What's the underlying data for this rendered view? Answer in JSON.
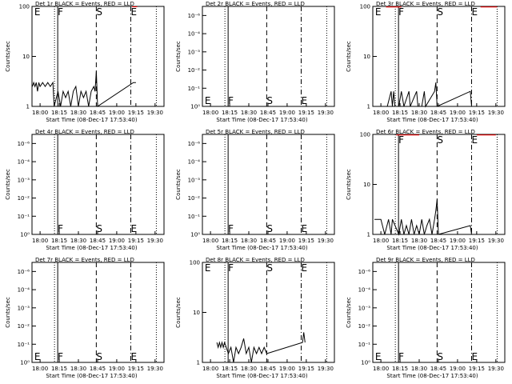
{
  "chart_data": [
    {
      "type": "line",
      "title": "Det 1r BLACK = Events, RED = LLD",
      "xlabel": "Start Time (08-Dec-17 17:53:40)",
      "ylabel": "Counts/sec",
      "log": true,
      "ylim": [
        1,
        100
      ],
      "yticks": [
        1,
        10,
        100
      ],
      "xlim": [
        1073.67,
        1177
      ],
      "xticks": [
        {
          "value": 1080,
          "label": "18:00"
        },
        {
          "value": 1095,
          "label": "18:15"
        },
        {
          "value": 1110,
          "label": "18:30"
        },
        {
          "value": 1125,
          "label": "18:45"
        },
        {
          "value": 1140,
          "label": "19:00"
        },
        {
          "value": 1155,
          "label": "19:15"
        },
        {
          "value": 1170,
          "label": "19:30"
        }
      ],
      "markers": [
        {
          "x": 1075.5,
          "label": "E",
          "style": "none"
        },
        {
          "x": 1091.3,
          "style": "dotted"
        },
        {
          "x": 1093.8,
          "label": "F",
          "style": "solid"
        },
        {
          "x": 1124,
          "label": "S",
          "style": "dashed"
        },
        {
          "x": 1151,
          "label": "E",
          "style": "dashdot"
        },
        {
          "x": 1171,
          "style": "dotted"
        }
      ],
      "marker_label_pos": "top",
      "series": [
        {
          "color": "#000000",
          "x": [
            1074,
            1075,
            1076,
            1077,
            1078,
            1079,
            1080,
            1082,
            1084,
            1086,
            1088,
            1090,
            1091,
            1094,
            1096,
            1098,
            1100,
            1102,
            1104,
            1106,
            1108,
            1110,
            1112,
            1114,
            1116,
            1118,
            1120,
            1122,
            1123,
            1124,
            1125,
            1153,
            1155
          ],
          "values": [
            2.5,
            3,
            2.5,
            3,
            2,
            3,
            2.5,
            3,
            2.5,
            3,
            2.5,
            3,
            1,
            2,
            1,
            2,
            1.5,
            2,
            1,
            2,
            2.5,
            1,
            2,
            1.5,
            2,
            1,
            2,
            2.5,
            2,
            5,
            1,
            3,
            3
          ]
        },
        {
          "color": "#ff0000",
          "x": [
            1152,
            1156
          ],
          "values": [
            98,
            98
          ]
        }
      ]
    },
    {
      "type": "line",
      "title": "Det 2r BLACK = Events, RED = LLD",
      "xlabel": "Start Time (08-Dec-17 17:53:40)",
      "ylabel": "Counts/sec",
      "log": false,
      "ylim": [
        1,
        1.0000055
      ],
      "yticks": [
        {
          "value": 1,
          "label": "10⁰"
        },
        {
          "value": 1.000001,
          "label": "10⁻¹"
        },
        {
          "value": 1.000002,
          "label": "10⁻²"
        },
        {
          "value": 1.000003,
          "label": "10⁻³"
        },
        {
          "value": 1.000004,
          "label": "10⁻⁴"
        },
        {
          "value": 1.000005,
          "label": "10⁻⁶"
        }
      ],
      "xlim": [
        1073.67,
        1177
      ],
      "xticks": [
        {
          "value": 1080,
          "label": "18:00"
        },
        {
          "value": 1095,
          "label": "18:15"
        },
        {
          "value": 1110,
          "label": "18:30"
        },
        {
          "value": 1125,
          "label": "18:45"
        },
        {
          "value": 1140,
          "label": "19:00"
        },
        {
          "value": 1155,
          "label": "19:15"
        },
        {
          "value": 1170,
          "label": "19:30"
        }
      ],
      "markers": [
        {
          "x": 1075.5,
          "label": "E",
          "style": "none"
        },
        {
          "x": 1091.3,
          "style": "dotted"
        },
        {
          "x": 1093.8,
          "label": "F",
          "style": "solid"
        },
        {
          "x": 1124,
          "label": "S",
          "style": "dashed"
        },
        {
          "x": 1151,
          "label": "E",
          "style": "dashdot"
        },
        {
          "x": 1171,
          "style": "dotted"
        }
      ],
      "marker_label_pos": "bottom",
      "series": []
    },
    {
      "type": "line",
      "title": "Det 3r BLACK = Events, RED = LLD",
      "xlabel": "Start Time (08-Dec-17 17:53:40)",
      "ylabel": "Counts/sec",
      "log": true,
      "ylim": [
        1,
        100
      ],
      "yticks": [
        1,
        10,
        100
      ],
      "xlim": [
        1073.67,
        1177
      ],
      "xticks": [
        {
          "value": 1080,
          "label": "18:00"
        },
        {
          "value": 1095,
          "label": "18:15"
        },
        {
          "value": 1110,
          "label": "18:30"
        },
        {
          "value": 1125,
          "label": "18:45"
        },
        {
          "value": 1140,
          "label": "19:00"
        },
        {
          "value": 1155,
          "label": "19:15"
        },
        {
          "value": 1170,
          "label": "19:30"
        }
      ],
      "markers": [
        {
          "x": 1075.5,
          "label": "E",
          "style": "none"
        },
        {
          "x": 1091.3,
          "style": "dotted"
        },
        {
          "x": 1093.8,
          "label": "F",
          "style": "solid"
        },
        {
          "x": 1124,
          "label": "S",
          "style": "dashed"
        },
        {
          "x": 1151,
          "label": "E",
          "style": "dashdot"
        },
        {
          "x": 1171,
          "style": "dotted"
        }
      ],
      "marker_label_pos": "top",
      "series": [
        {
          "color": "#000000",
          "x": [
            1085,
            1088,
            1089,
            1090,
            1091,
            1094,
            1096,
            1098,
            1102,
            1103,
            1108,
            1109,
            1112,
            1114,
            1115,
            1122,
            1123,
            1124,
            1150,
            1151
          ],
          "values": [
            1,
            2,
            1,
            2,
            1,
            1,
            2,
            1,
            2,
            1,
            2,
            1,
            1,
            2,
            1,
            2,
            3,
            1,
            2,
            1
          ]
        },
        {
          "color": "#ff0000",
          "x": [
            1084,
            1096,
            null,
            1158,
            1171
          ],
          "values": [
            97,
            97,
            null,
            97,
            97
          ]
        }
      ]
    },
    {
      "type": "line",
      "title": "Det 4r BLACK = Events, RED = LLD",
      "xlabel": "Start Time (08-Dec-17 17:53:40)",
      "ylabel": "Counts/sec",
      "log": false,
      "ylim": [
        1,
        1.0000055
      ],
      "yticks": [
        {
          "value": 1,
          "label": "10⁰"
        },
        {
          "value": 1.000001,
          "label": "10⁻¹"
        },
        {
          "value": 1.000002,
          "label": "10⁻²"
        },
        {
          "value": 1.000003,
          "label": "10⁻³"
        },
        {
          "value": 1.000004,
          "label": "10⁻⁴"
        },
        {
          "value": 1.000005,
          "label": "10⁻⁶"
        }
      ],
      "xlim": [
        1073.67,
        1177
      ],
      "xticks": [
        {
          "value": 1080,
          "label": "18:00"
        },
        {
          "value": 1095,
          "label": "18:15"
        },
        {
          "value": 1110,
          "label": "18:30"
        },
        {
          "value": 1125,
          "label": "18:45"
        },
        {
          "value": 1140,
          "label": "19:00"
        },
        {
          "value": 1155,
          "label": "19:15"
        },
        {
          "value": 1170,
          "label": "19:30"
        }
      ],
      "markers": [
        {
          "x": 1091.3,
          "style": "dotted"
        },
        {
          "x": 1093.8,
          "label": "F",
          "style": "solid"
        },
        {
          "x": 1124,
          "label": "S",
          "style": "dashed"
        },
        {
          "x": 1151,
          "label": "E",
          "style": "dashdot"
        },
        {
          "x": 1171,
          "style": "dotted"
        }
      ],
      "marker_label_pos": "bottom",
      "series": []
    },
    {
      "type": "line",
      "title": "Det 5r BLACK = Events, RED = LLD",
      "xlabel": "Start Time (08-Dec-17 17:53:40)",
      "ylabel": "Counts/sec",
      "log": false,
      "ylim": [
        1,
        1.0000055
      ],
      "yticks": [
        {
          "value": 1,
          "label": "10⁰"
        },
        {
          "value": 1.000001,
          "label": "10⁻¹"
        },
        {
          "value": 1.000002,
          "label": "10⁻²"
        },
        {
          "value": 1.000003,
          "label": "10⁻³"
        },
        {
          "value": 1.000004,
          "label": "10⁻⁴"
        },
        {
          "value": 1.000005,
          "label": "10⁻⁶"
        }
      ],
      "xlim": [
        1073.67,
        1177
      ],
      "xticks": [
        {
          "value": 1080,
          "label": "18:00"
        },
        {
          "value": 1095,
          "label": "18:15"
        },
        {
          "value": 1110,
          "label": "18:30"
        },
        {
          "value": 1125,
          "label": "18:45"
        },
        {
          "value": 1140,
          "label": "19:00"
        },
        {
          "value": 1155,
          "label": "19:15"
        },
        {
          "value": 1170,
          "label": "19:30"
        }
      ],
      "markers": [
        {
          "x": 1091.3,
          "style": "dotted"
        },
        {
          "x": 1093.8,
          "label": "F",
          "style": "solid"
        },
        {
          "x": 1124,
          "label": "S",
          "style": "dashed"
        },
        {
          "x": 1151,
          "label": "E",
          "style": "dashdot"
        },
        {
          "x": 1171,
          "style": "dotted"
        }
      ],
      "marker_label_pos": "bottom",
      "series": []
    },
    {
      "type": "line",
      "title": "Det 6r BLACK = Events, RED = LLD",
      "xlabel": "Start Time (08-Dec-17 17:53:40)",
      "ylabel": "Counts/sec",
      "log": true,
      "ylim": [
        1,
        100
      ],
      "yticks": [
        1,
        10,
        100
      ],
      "xlim": [
        1073.67,
        1177
      ],
      "xticks": [
        {
          "value": 1080,
          "label": "18:00"
        },
        {
          "value": 1095,
          "label": "18:15"
        },
        {
          "value": 1110,
          "label": "18:30"
        },
        {
          "value": 1125,
          "label": "18:45"
        },
        {
          "value": 1140,
          "label": "19:00"
        },
        {
          "value": 1155,
          "label": "19:15"
        },
        {
          "value": 1170,
          "label": "19:30"
        }
      ],
      "markers": [
        {
          "x": 1091.3,
          "style": "dotted"
        },
        {
          "x": 1093.8,
          "label": "F",
          "style": "solid"
        },
        {
          "x": 1124,
          "label": "S",
          "style": "dashed"
        },
        {
          "x": 1151,
          "label": "E",
          "style": "dashdot"
        },
        {
          "x": 1171,
          "style": "dotted"
        }
      ],
      "marker_label_pos": "top",
      "series": [
        {
          "color": "#000000",
          "x": [
            1075,
            1080,
            1083,
            1086,
            1088,
            1089,
            1094,
            1096,
            1098,
            1100,
            1102,
            1104,
            1106,
            1108,
            1110,
            1112,
            1114,
            1116,
            1118,
            1120,
            1122,
            1123,
            1124,
            1125,
            1150,
            1151
          ],
          "values": [
            2,
            2,
            1,
            2,
            1,
            2,
            1,
            2,
            1,
            1.5,
            1,
            2,
            1,
            1.5,
            1,
            2,
            1,
            1.5,
            2,
            1,
            2,
            3,
            5,
            1,
            1.5,
            1
          ]
        },
        {
          "color": "#ff0000",
          "x": [
            1092,
            1110,
            null,
            1155,
            1170
          ],
          "values": [
            97,
            97,
            null,
            97,
            97
          ]
        }
      ]
    },
    {
      "type": "line",
      "title": "Det 7r BLACK = Events, RED = LLD",
      "xlabel": "Start Time (08-Dec-17 17:53:40)",
      "ylabel": "Counts/sec",
      "log": false,
      "ylim": [
        1,
        1.0000055
      ],
      "yticks": [
        {
          "value": 1,
          "label": "10⁰"
        },
        {
          "value": 1.000001,
          "label": "10⁻¹"
        },
        {
          "value": 1.000002,
          "label": "10⁻²"
        },
        {
          "value": 1.000003,
          "label": "10⁻³"
        },
        {
          "value": 1.000004,
          "label": "10⁻⁴"
        },
        {
          "value": 1.000005,
          "label": "10⁻⁶"
        }
      ],
      "xlim": [
        1073.67,
        1177
      ],
      "xticks": [
        {
          "value": 1080,
          "label": "18:00"
        },
        {
          "value": 1095,
          "label": "18:15"
        },
        {
          "value": 1110,
          "label": "18:30"
        },
        {
          "value": 1125,
          "label": "18:45"
        },
        {
          "value": 1140,
          "label": "19:00"
        },
        {
          "value": 1155,
          "label": "19:15"
        },
        {
          "value": 1170,
          "label": "19:30"
        }
      ],
      "markers": [
        {
          "x": 1075.5,
          "label": "E",
          "style": "none"
        },
        {
          "x": 1091.3,
          "style": "dotted"
        },
        {
          "x": 1093.8,
          "label": "F",
          "style": "solid"
        },
        {
          "x": 1124,
          "label": "S",
          "style": "dashed"
        },
        {
          "x": 1151,
          "label": "E",
          "style": "dashdot"
        },
        {
          "x": 1171,
          "style": "dotted"
        }
      ],
      "marker_label_pos": "bottom",
      "series": []
    },
    {
      "type": "line",
      "title": "Det 8r BLACK = Events, RED = LLD",
      "xlabel": "Start Time (08-Dec-17 17:53:40)",
      "ylabel": "Counts/sec",
      "log": true,
      "ylim": [
        1,
        100
      ],
      "yticks": [
        1,
        10,
        100
      ],
      "xlim": [
        1073.67,
        1177
      ],
      "xticks": [
        {
          "value": 1080,
          "label": "18:00"
        },
        {
          "value": 1095,
          "label": "18:15"
        },
        {
          "value": 1110,
          "label": "18:30"
        },
        {
          "value": 1125,
          "label": "18:45"
        },
        {
          "value": 1140,
          "label": "19:00"
        },
        {
          "value": 1155,
          "label": "19:15"
        },
        {
          "value": 1170,
          "label": "19:30"
        }
      ],
      "markers": [
        {
          "x": 1075.5,
          "label": "E",
          "style": "none"
        },
        {
          "x": 1091.3,
          "style": "dotted"
        },
        {
          "x": 1093.8,
          "label": "F",
          "style": "solid"
        },
        {
          "x": 1124,
          "label": "S",
          "style": "dashed"
        },
        {
          "x": 1151,
          "label": "E",
          "style": "dashdot"
        },
        {
          "x": 1171,
          "style": "dotted"
        }
      ],
      "marker_label_pos": "top",
      "series": [
        {
          "color": "#000000",
          "x": [
            1085,
            1086,
            1087,
            1088,
            1089,
            1090,
            1091,
            1094,
            1096,
            1098,
            1100,
            1102,
            1104,
            1106,
            1108,
            1110,
            1112,
            1114,
            1116,
            1118,
            1120,
            1122,
            1124,
            1152,
            1153,
            1154
          ],
          "values": [
            2.5,
            2,
            2.5,
            2,
            2.5,
            2,
            2.5,
            1.5,
            2,
            1,
            2,
            1.5,
            2,
            3,
            1.5,
            2,
            1,
            2,
            1.5,
            2,
            1.5,
            2,
            1.5,
            2.5,
            4,
            2.5
          ]
        }
      ]
    },
    {
      "type": "line",
      "title": "Det 9r BLACK = Events, RED = LLD",
      "xlabel": "Start Time (08-Dec-17 17:53:40)",
      "ylabel": "Counts/sec",
      "log": false,
      "ylim": [
        1,
        1.0000055
      ],
      "yticks": [
        {
          "value": 1,
          "label": "10⁰"
        },
        {
          "value": 1.000001,
          "label": "10⁻¹"
        },
        {
          "value": 1.000002,
          "label": "10⁻²"
        },
        {
          "value": 1.000003,
          "label": "10⁻³"
        },
        {
          "value": 1.000004,
          "label": "10⁻⁴"
        },
        {
          "value": 1.000005,
          "label": "10⁻⁶"
        }
      ],
      "xlim": [
        1073.67,
        1177
      ],
      "xticks": [
        {
          "value": 1080,
          "label": "18:00"
        },
        {
          "value": 1095,
          "label": "18:15"
        },
        {
          "value": 1110,
          "label": "18:30"
        },
        {
          "value": 1125,
          "label": "18:45"
        },
        {
          "value": 1140,
          "label": "19:00"
        },
        {
          "value": 1155,
          "label": "19:15"
        },
        {
          "value": 1170,
          "label": "19:30"
        }
      ],
      "markers": [
        {
          "x": 1075.5,
          "label": "E",
          "style": "none"
        },
        {
          "x": 1091.3,
          "style": "dotted"
        },
        {
          "x": 1093.8,
          "label": "F",
          "style": "solid"
        },
        {
          "x": 1124,
          "label": "S",
          "style": "dashed"
        },
        {
          "x": 1151,
          "label": "E",
          "style": "dashdot"
        },
        {
          "x": 1171,
          "style": "dotted"
        }
      ],
      "marker_label_pos": "bottom",
      "series": []
    }
  ]
}
